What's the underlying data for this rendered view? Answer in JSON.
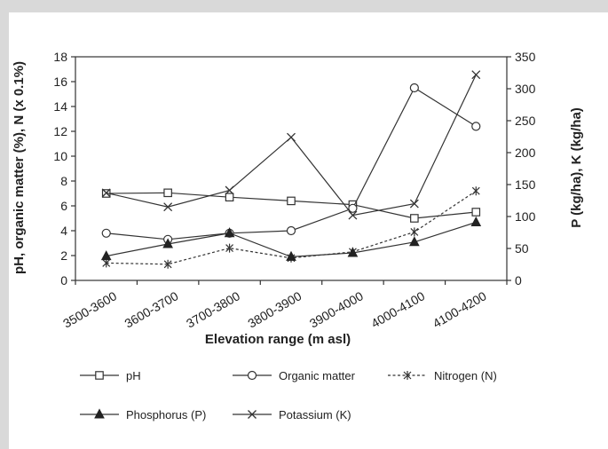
{
  "chart_data": {
    "type": "line",
    "categories": [
      "3500-3600",
      "3600-3700",
      "3700-3800",
      "3800-3900",
      "3900-4000",
      "4000-4100",
      "4100-4200"
    ],
    "xlabel": "Elevation range (m asl)",
    "ylabel_left": "pH, organic matter (%), N (x 0.1%)",
    "ylabel_right": "P (kg/ha), K (kg/ha)",
    "ylim_left": [
      0,
      18
    ],
    "yticks_left": [
      "0",
      "2",
      "4",
      "6",
      "8",
      "10",
      "12",
      "14",
      "16",
      "18"
    ],
    "ylim_right": [
      0,
      350
    ],
    "yticks_right": [
      "0",
      "50",
      "100",
      "150",
      "200",
      "250",
      "300",
      "350"
    ],
    "grid": false,
    "legend_position": "bottom",
    "series": [
      {
        "name": "pH",
        "axis": "left",
        "marker": "square",
        "dash": "solid",
        "values": [
          7.0,
          7.05,
          6.7,
          6.4,
          6.1,
          5.0,
          5.5
        ]
      },
      {
        "name": "Organic matter",
        "axis": "left",
        "marker": "circle",
        "dash": "solid",
        "values": [
          3.8,
          3.3,
          3.8,
          4.0,
          5.8,
          15.5,
          12.4
        ]
      },
      {
        "name": "Nitrogen (N)",
        "axis": "left",
        "marker": "asterisk",
        "dash": "dotted",
        "values": [
          1.4,
          1.3,
          2.6,
          1.8,
          2.3,
          3.9,
          7.2
        ]
      },
      {
        "name": "Phosphorus (P)",
        "axis": "right",
        "marker": "triangle",
        "dash": "solid",
        "values": [
          38,
          57,
          74,
          37,
          43,
          60,
          91
        ]
      },
      {
        "name": "Potassium (K)",
        "axis": "right",
        "marker": "x",
        "dash": "solid",
        "values": [
          137,
          115,
          141,
          224,
          102,
          120,
          322
        ]
      }
    ]
  }
}
